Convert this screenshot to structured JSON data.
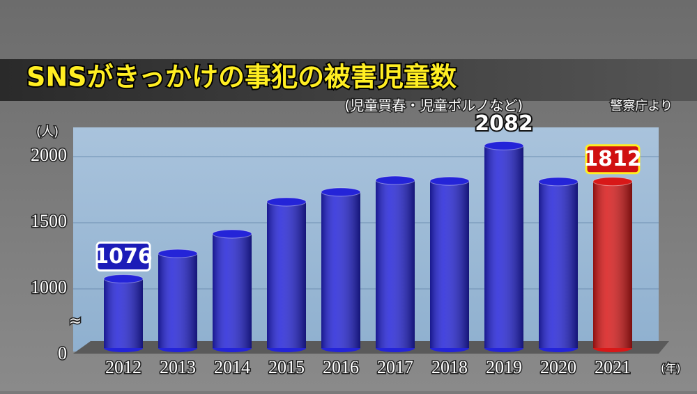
{
  "chart_data": {
    "type": "bar",
    "title": "SNSがきっかけの事犯の被害児童数",
    "subtitle": "(児童買春・児童ポルノなど)",
    "source": "警察庁より",
    "y_unit": "(人)",
    "x_unit": "(年)",
    "categories": [
      "2012",
      "2013",
      "2014",
      "2015",
      "2016",
      "2017",
      "2018",
      "2019",
      "2020",
      "2021"
    ],
    "values": [
      1076,
      1268,
      1416,
      1658,
      1732,
      1821,
      1815,
      2082,
      1811,
      1812
    ],
    "colors": [
      "#2424d8",
      "#2424d8",
      "#2424d8",
      "#2424d8",
      "#2424d8",
      "#2424d8",
      "#2424d8",
      "#2424d8",
      "#2424d8",
      "#d81818"
    ],
    "data_labels": [
      {
        "index": 0,
        "box": "#1c1cb8"
      },
      {
        "index": 7
      },
      {
        "index": 9,
        "box": "#d01010"
      }
    ],
    "ylim": [
      0,
      2200
    ],
    "y_break": [
      0,
      1000
    ],
    "yticks": [
      0,
      1000,
      1500,
      2000
    ],
    "grid": true
  }
}
